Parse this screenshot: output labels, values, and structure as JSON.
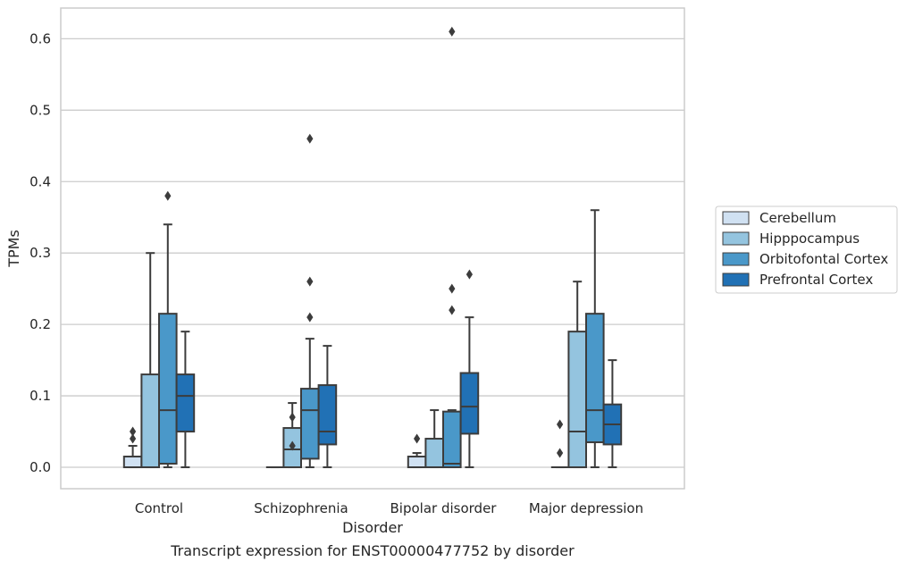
{
  "chart_data": {
    "type": "box",
    "title": "",
    "caption": "Transcript expression for ENST00000477752 by disorder",
    "xlabel": "Disorder",
    "ylabel": "TPMs",
    "ylim": [
      -0.03,
      0.643
    ],
    "yticks": [
      0.0,
      0.1,
      0.2,
      0.3,
      0.4,
      0.5,
      0.6
    ],
    "ytick_labels": [
      "0.0",
      "0.1",
      "0.2",
      "0.3",
      "0.4",
      "0.5",
      "0.6"
    ],
    "categories": [
      "Control",
      "Schizophrenia",
      "Bipolar disorder",
      "Major depression"
    ],
    "grid": "horizontal",
    "legend_position": "right",
    "series": [
      {
        "name": "Cerebellum",
        "color": "#d0e1f2",
        "boxes": [
          {
            "q1": 0.0,
            "median": 0.0,
            "q3": 0.015,
            "whisker_low": 0.0,
            "whisker_high": 0.03,
            "outliers": [
              0.04,
              0.05
            ]
          },
          {
            "q1": 0.0,
            "median": 0.0,
            "q3": 0.0,
            "whisker_low": 0.0,
            "whisker_high": 0.0,
            "outliers": []
          },
          {
            "q1": 0.0,
            "median": 0.0,
            "q3": 0.015,
            "whisker_low": 0.0,
            "whisker_high": 0.02,
            "outliers": [
              0.04
            ]
          },
          {
            "q1": 0.0,
            "median": 0.0,
            "q3": 0.0,
            "whisker_low": 0.0,
            "whisker_high": 0.0,
            "outliers": [
              0.02,
              0.06
            ]
          }
        ]
      },
      {
        "name": "Hipppocampus",
        "color": "#94c4df",
        "boxes": [
          {
            "q1": 0.0,
            "median": 0.0,
            "q3": 0.13,
            "whisker_low": 0.0,
            "whisker_high": 0.3,
            "outliers": []
          },
          {
            "q1": 0.0,
            "median": 0.025,
            "q3": 0.055,
            "whisker_low": 0.0,
            "whisker_high": 0.09,
            "outliers": [
              0.03,
              0.07
            ]
          },
          {
            "q1": 0.0,
            "median": 0.0,
            "q3": 0.04,
            "whisker_low": 0.0,
            "whisker_high": 0.08,
            "outliers": []
          },
          {
            "q1": 0.0,
            "median": 0.05,
            "q3": 0.19,
            "whisker_low": 0.0,
            "whisker_high": 0.26,
            "outliers": []
          }
        ]
      },
      {
        "name": "Orbitofontal Cortex",
        "color": "#4a98c9",
        "boxes": [
          {
            "q1": 0.005,
            "median": 0.08,
            "q3": 0.215,
            "whisker_low": 0.0,
            "whisker_high": 0.34,
            "outliers": [
              0.38
            ]
          },
          {
            "q1": 0.012,
            "median": 0.08,
            "q3": 0.11,
            "whisker_low": 0.0,
            "whisker_high": 0.18,
            "outliers": [
              0.21,
              0.26,
              0.46
            ]
          },
          {
            "q1": 0.0,
            "median": 0.005,
            "q3": 0.078,
            "whisker_low": 0.0,
            "whisker_high": 0.08,
            "outliers": [
              0.22,
              0.25,
              0.61
            ]
          },
          {
            "q1": 0.035,
            "median": 0.08,
            "q3": 0.215,
            "whisker_low": 0.0,
            "whisker_high": 0.36,
            "outliers": []
          }
        ]
      },
      {
        "name": "Prefrontal Cortex",
        "color": "#2171b5",
        "boxes": [
          {
            "q1": 0.05,
            "median": 0.1,
            "q3": 0.13,
            "whisker_low": 0.0,
            "whisker_high": 0.19,
            "outliers": []
          },
          {
            "q1": 0.032,
            "median": 0.05,
            "q3": 0.115,
            "whisker_low": 0.0,
            "whisker_high": 0.17,
            "outliers": []
          },
          {
            "q1": 0.047,
            "median": 0.085,
            "q3": 0.132,
            "whisker_low": 0.0,
            "whisker_high": 0.21,
            "outliers": [
              0.27
            ]
          },
          {
            "q1": 0.032,
            "median": 0.06,
            "q3": 0.088,
            "whisker_low": 0.0,
            "whisker_high": 0.15,
            "outliers": []
          }
        ]
      }
    ]
  }
}
